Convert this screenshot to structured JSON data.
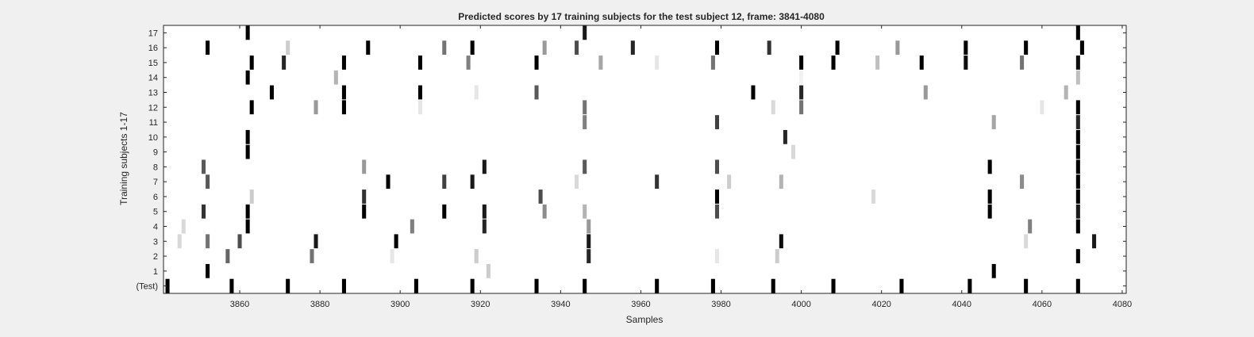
{
  "chart_data": {
    "type": "heatmap",
    "title": "Predicted scores by 17 training subjects for the test subject 12, frame: 3841-4080",
    "xlabel": "Samples",
    "ylabel": "Training subjects 1-17",
    "xlim": [
      3841,
      4080
    ],
    "x_ticks": [
      3860,
      3880,
      3900,
      3920,
      3940,
      3960,
      3980,
      4000,
      4020,
      4040,
      4060,
      4080
    ],
    "rows": [
      "(Test)",
      "1",
      "2",
      "3",
      "4",
      "5",
      "6",
      "7",
      "8",
      "9",
      "10",
      "11",
      "12",
      "13",
      "14",
      "15",
      "16",
      "17"
    ],
    "colormap": "grayscale: 0 = white, 1 = black",
    "background_color": "#ffffff",
    "cells": [
      {
        "row": "(Test)",
        "points": [
          [
            3842,
            1.0
          ],
          [
            3858,
            1.0
          ],
          [
            3872,
            1.0
          ],
          [
            3886,
            1.0
          ],
          [
            3904,
            1.0
          ],
          [
            3918,
            1.0
          ],
          [
            3934,
            1.0
          ],
          [
            3946,
            1.0
          ],
          [
            3964,
            1.0
          ],
          [
            3978,
            1.0
          ],
          [
            3993,
            1.0
          ],
          [
            4008,
            1.0
          ],
          [
            4025,
            1.0
          ],
          [
            4042,
            1.0
          ],
          [
            4056,
            1.0
          ],
          [
            4069,
            1.0
          ]
        ]
      },
      {
        "row": "1",
        "points": [
          [
            3852,
            1.0
          ],
          [
            3922,
            0.2
          ],
          [
            4048,
            1.0
          ]
        ]
      },
      {
        "row": "2",
        "points": [
          [
            3857,
            0.6
          ],
          [
            3878,
            0.55
          ],
          [
            3898,
            0.1
          ],
          [
            3919,
            0.2
          ],
          [
            3947,
            0.85
          ],
          [
            3979,
            0.1
          ],
          [
            3994,
            0.2
          ],
          [
            4069,
            1.0
          ]
        ]
      },
      {
        "row": "3",
        "points": [
          [
            3845,
            0.15
          ],
          [
            3852,
            0.55
          ],
          [
            3860,
            0.7
          ],
          [
            3879,
            0.9
          ],
          [
            3899,
            1.0
          ],
          [
            3947,
            0.9
          ],
          [
            3995,
            0.95
          ],
          [
            4056,
            0.15
          ],
          [
            4073,
            0.9
          ]
        ]
      },
      {
        "row": "4",
        "points": [
          [
            3846,
            0.15
          ],
          [
            3862,
            1.0
          ],
          [
            3903,
            0.5
          ],
          [
            3921,
            0.85
          ],
          [
            3947,
            0.4
          ],
          [
            4057,
            0.5
          ],
          [
            4069,
            1.0
          ]
        ]
      },
      {
        "row": "5",
        "points": [
          [
            3851,
            0.8
          ],
          [
            3862,
            1.0
          ],
          [
            3891,
            1.0
          ],
          [
            3911,
            1.0
          ],
          [
            3921,
            0.9
          ],
          [
            3936,
            0.45
          ],
          [
            3946,
            0.3
          ],
          [
            3979,
            0.7
          ],
          [
            4047,
            1.0
          ],
          [
            4069,
            0.9
          ]
        ]
      },
      {
        "row": "6",
        "points": [
          [
            3863,
            0.2
          ],
          [
            3891,
            0.8
          ],
          [
            3935,
            0.7
          ],
          [
            3979,
            1.0
          ],
          [
            4018,
            0.15
          ],
          [
            4047,
            1.0
          ],
          [
            4069,
            1.0
          ]
        ]
      },
      {
        "row": "7",
        "points": [
          [
            3852,
            0.65
          ],
          [
            3897,
            1.0
          ],
          [
            3911,
            0.75
          ],
          [
            3918,
            0.9
          ],
          [
            3944,
            0.15
          ],
          [
            3964,
            0.8
          ],
          [
            3982,
            0.2
          ],
          [
            3995,
            0.3
          ],
          [
            4055,
            0.45
          ],
          [
            4069,
            1.0
          ]
        ]
      },
      {
        "row": "8",
        "points": [
          [
            3851,
            0.65
          ],
          [
            3891,
            0.4
          ],
          [
            3921,
            0.9
          ],
          [
            3946,
            0.65
          ],
          [
            3979,
            0.7
          ],
          [
            4047,
            1.0
          ],
          [
            4069,
            1.0
          ]
        ]
      },
      {
        "row": "9",
        "points": [
          [
            3862,
            1.0
          ],
          [
            3998,
            0.15
          ],
          [
            4069,
            1.0
          ]
        ]
      },
      {
        "row": "10",
        "points": [
          [
            3862,
            1.0
          ],
          [
            3996,
            0.85
          ],
          [
            4069,
            1.0
          ]
        ]
      },
      {
        "row": "11",
        "points": [
          [
            3946,
            0.5
          ],
          [
            3979,
            0.75
          ],
          [
            4048,
            0.35
          ],
          [
            4069,
            0.85
          ]
        ]
      },
      {
        "row": "12",
        "points": [
          [
            3863,
            1.0
          ],
          [
            3879,
            0.4
          ],
          [
            3886,
            1.0
          ],
          [
            3905,
            0.1
          ],
          [
            3946,
            0.55
          ],
          [
            3993,
            0.15
          ],
          [
            4000,
            0.55
          ],
          [
            4060,
            0.1
          ],
          [
            4069,
            1.0
          ]
        ]
      },
      {
        "row": "13",
        "points": [
          [
            3868,
            1.0
          ],
          [
            3886,
            1.0
          ],
          [
            3905,
            1.0
          ],
          [
            3919,
            0.1
          ],
          [
            3934,
            0.65
          ],
          [
            3988,
            1.0
          ],
          [
            4000,
            0.85
          ],
          [
            4031,
            0.4
          ],
          [
            4066,
            0.3
          ]
        ]
      },
      {
        "row": "14",
        "points": [
          [
            3862,
            1.0
          ],
          [
            3884,
            0.3
          ],
          [
            4000,
            0.05
          ],
          [
            4069,
            0.25
          ]
        ]
      },
      {
        "row": "15",
        "points": [
          [
            3863,
            1.0
          ],
          [
            3871,
            0.85
          ],
          [
            3886,
            1.0
          ],
          [
            3905,
            1.0
          ],
          [
            3917,
            0.5
          ],
          [
            3934,
            1.0
          ],
          [
            3950,
            0.35
          ],
          [
            3964,
            0.1
          ],
          [
            3978,
            0.55
          ],
          [
            4000,
            1.0
          ],
          [
            4008,
            1.0
          ],
          [
            4019,
            0.25
          ],
          [
            4030,
            1.0
          ],
          [
            4041,
            0.95
          ],
          [
            4055,
            0.55
          ],
          [
            4069,
            0.95
          ]
        ]
      },
      {
        "row": "16",
        "points": [
          [
            3852,
            1.0
          ],
          [
            3872,
            0.2
          ],
          [
            3892,
            1.0
          ],
          [
            3911,
            0.55
          ],
          [
            3918,
            1.0
          ],
          [
            3936,
            0.4
          ],
          [
            3944,
            0.7
          ],
          [
            3958,
            0.85
          ],
          [
            3979,
            1.0
          ],
          [
            3992,
            0.8
          ],
          [
            4009,
            1.0
          ],
          [
            4024,
            0.4
          ],
          [
            4041,
            1.0
          ],
          [
            4056,
            1.0
          ],
          [
            4070,
            1.0
          ]
        ]
      },
      {
        "row": "17",
        "points": [
          [
            3862,
            1.0
          ],
          [
            3946,
            0.9
          ],
          [
            4069,
            1.0
          ]
        ]
      }
    ]
  }
}
